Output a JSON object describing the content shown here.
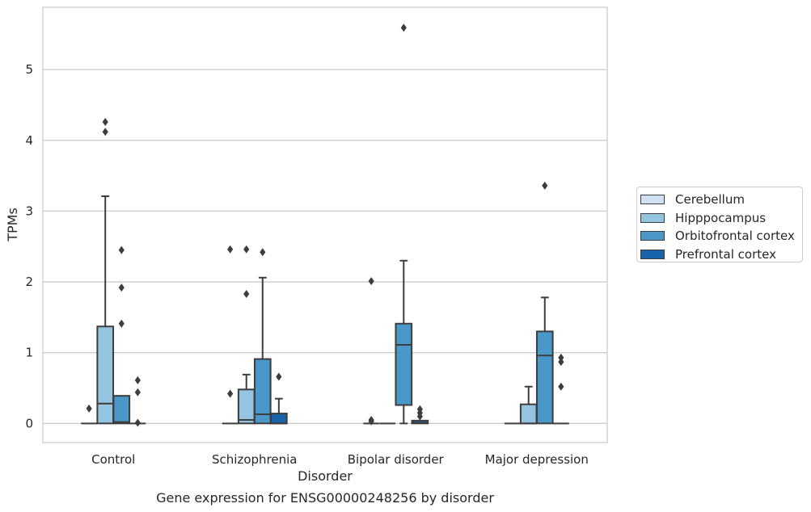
{
  "chart_data": {
    "type": "box",
    "title": "Gene expression for ENSG00000248256 by disorder",
    "xlabel": "Disorder",
    "ylabel": "TPMs",
    "ylim": [
      -0.27,
      5.88
    ],
    "yticks": [
      0,
      1,
      2,
      3,
      4,
      5
    ],
    "categories": [
      "Control",
      "Schizophrenia",
      "Bipolar disorder",
      "Major depression"
    ],
    "legend_position": "right",
    "grid": "horizontal",
    "series": [
      {
        "name": "Cerebellum",
        "color": "#d0e1f2",
        "boxes": [
          {
            "category": "Control",
            "q1": 0,
            "median": 0,
            "q3": 0,
            "whisker_low": 0,
            "whisker_high": 0,
            "outliers": []
          },
          {
            "category": "Schizophrenia",
            "q1": 0,
            "median": 0,
            "q3": 0,
            "whisker_low": 0,
            "whisker_high": 0,
            "outliers": []
          },
          {
            "category": "Bipolar disorder",
            "q1": 0,
            "median": 0,
            "q3": 0,
            "whisker_low": 0,
            "whisker_high": 0,
            "outliers": []
          },
          {
            "category": "Major depression",
            "q1": 0,
            "median": 0,
            "q3": 0,
            "whisker_low": 0,
            "whisker_high": 0,
            "outliers": []
          }
        ]
      },
      {
        "name": "Hipppocampus",
        "color": "#94c4df",
        "boxes": [
          {
            "category": "Control",
            "q1": 0,
            "median": 0.28,
            "q3": 1.37,
            "whisker_low": 0,
            "whisker_high": 3.21,
            "outliers": [
              4.26,
              4.12
            ]
          },
          {
            "category": "Schizophrenia",
            "q1": 0,
            "median": 0.05,
            "q3": 0.48,
            "whisker_low": 0,
            "whisker_high": 0.69,
            "outliers": [
              1.83,
              2.46
            ]
          },
          {
            "category": "Bipolar disorder",
            "q1": 0,
            "median": 0,
            "q3": 0,
            "whisker_low": 0,
            "whisker_high": 0,
            "outliers": []
          },
          {
            "category": "Major depression",
            "q1": 0,
            "median": 0,
            "q3": 0.27,
            "whisker_low": 0,
            "whisker_high": 0.52,
            "outliers": []
          }
        ]
      },
      {
        "name": "Orbitofrontal cortex",
        "color": "#4a98c9",
        "boxes": [
          {
            "category": "Control",
            "q1": 0,
            "median": 0.02,
            "q3": 0.39,
            "whisker_low": 0,
            "whisker_high": 0.39,
            "outliers": [
              1.41,
              1.92,
              2.45
            ]
          },
          {
            "category": "Schizophrenia",
            "q1": 0,
            "median": 0.13,
            "q3": 0.91,
            "whisker_low": 0,
            "whisker_high": 2.06,
            "outliers": [
              2.42
            ]
          },
          {
            "category": "Bipolar disorder",
            "q1": 0.26,
            "median": 1.11,
            "q3": 1.41,
            "whisker_low": 0,
            "whisker_high": 2.3,
            "outliers": [
              5.59
            ]
          },
          {
            "category": "Major depression",
            "q1": 0,
            "median": 0.96,
            "q3": 1.3,
            "whisker_low": 0,
            "whisker_high": 1.78,
            "outliers": [
              3.36
            ]
          }
        ]
      },
      {
        "name": "Prefrontal cortex",
        "color": "#1764ab",
        "boxes": [
          {
            "category": "Control",
            "q1": 0,
            "median": 0,
            "q3": 0,
            "whisker_low": 0,
            "whisker_high": 0,
            "outliers": [
              0.61,
              0.44,
              0.01
            ]
          },
          {
            "category": "Schizophrenia",
            "q1": 0,
            "median": 0,
            "q3": 0.14,
            "whisker_low": 0,
            "whisker_high": 0.35,
            "outliers": [
              0.66
            ]
          },
          {
            "category": "Bipolar disorder",
            "q1": 0,
            "median": 0.01,
            "q3": 0.04,
            "whisker_low": 0,
            "whisker_high": 0.04,
            "outliers": [
              0.1,
              0.15,
              0.2
            ]
          },
          {
            "category": "Major depression",
            "q1": 0,
            "median": 0,
            "q3": 0,
            "whisker_low": 0,
            "whisker_high": 0,
            "outliers": [
              0.93,
              0.87,
              0.52
            ]
          }
        ]
      }
    ],
    "extra_outliers": [
      {
        "category": "Control",
        "series": "Cerebellum",
        "values": [
          0.21
        ]
      },
      {
        "category": "Schizophrenia",
        "series": "Cerebellum",
        "values": [
          0.42,
          2.46
        ]
      },
      {
        "category": "Bipolar disorder",
        "series": "Cerebellum",
        "values": [
          2.01,
          0.05,
          0.03
        ]
      }
    ]
  }
}
